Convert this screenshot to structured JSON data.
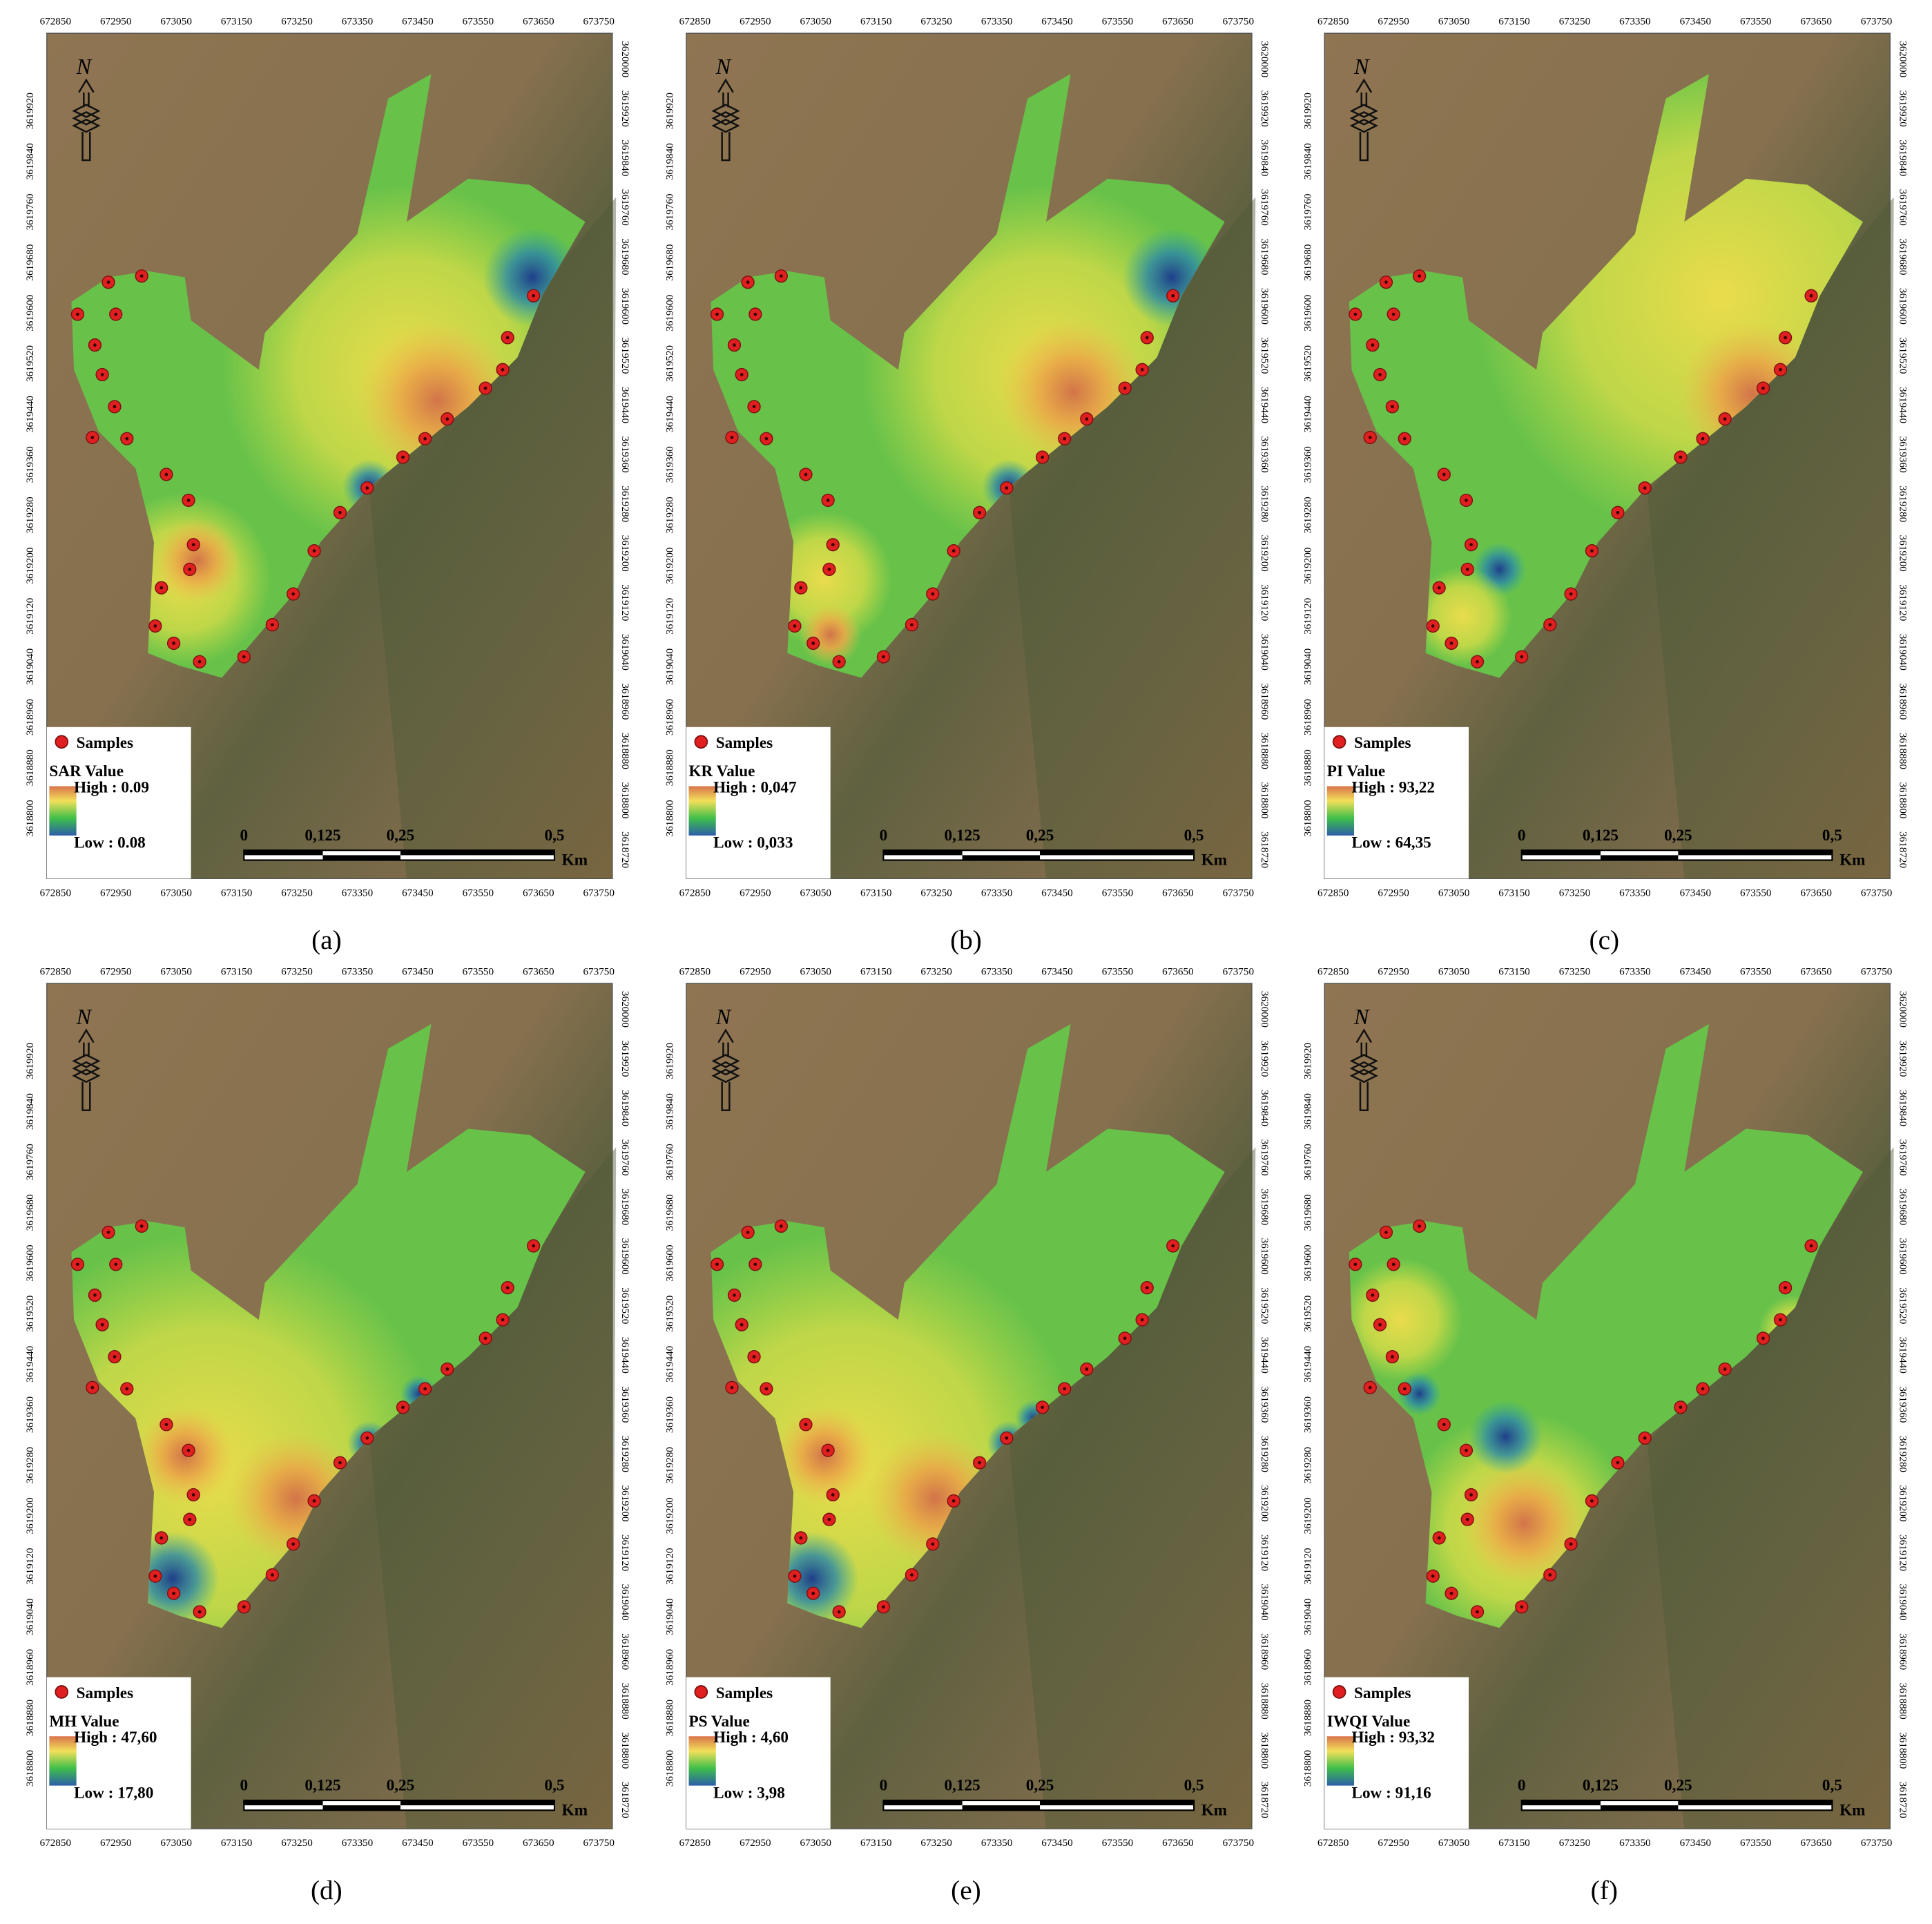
{
  "x_ticks": [
    672850,
    672950,
    673050,
    673150,
    673250,
    673350,
    673450,
    673550,
    673650,
    673750
  ],
  "y_ticks_left": [
    3619920,
    3619840,
    3619760,
    3619680,
    3619600,
    3619520,
    3619440,
    3619360,
    3619280,
    3619200,
    3619120,
    3619040,
    3618960,
    3618880,
    3618800
  ],
  "y_ticks_right": [
    3620000,
    3619920,
    3619840,
    3619760,
    3619680,
    3619600,
    3619520,
    3619440,
    3619360,
    3619280,
    3619200,
    3619120,
    3619040,
    3618960,
    3618880,
    3618800,
    3618720
  ],
  "north": "N",
  "samples_label": "Samples",
  "scale_labels": [
    "0",
    "0,125",
    "0,25",
    "0,5"
  ],
  "scale_unit": "Km",
  "panels": [
    {
      "caption": "(a)",
      "legend_title": "SAR Value",
      "high": "High : 0.09",
      "low": "Low : 0.08"
    },
    {
      "caption": "(b)",
      "legend_title": "KR Value",
      "high": "High : 0,047",
      "low": "Low : 0,033"
    },
    {
      "caption": "(c)",
      "legend_title": "PI Value",
      "high": "High : 93,22",
      "low": "Low : 64,35"
    },
    {
      "caption": "(d)",
      "legend_title": "MH Value",
      "high": "High : 47,60",
      "low": "Low : 17,80"
    },
    {
      "caption": "(e)",
      "legend_title": "PS Value",
      "high": "High : 4,60",
      "low": "Low : 3,98"
    },
    {
      "caption": "(f)",
      "legend_title": "IWQI Value",
      "high": "High : 93,32",
      "low": "Low : 91,16"
    }
  ]
}
